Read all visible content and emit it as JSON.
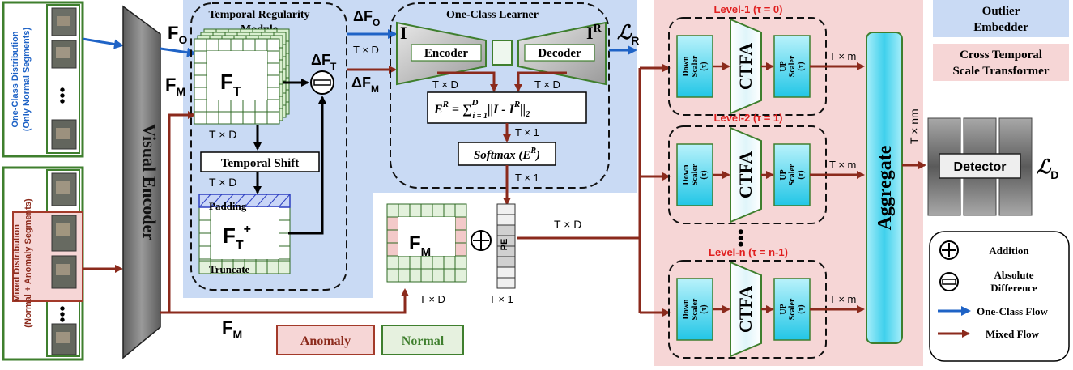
{
  "input": {
    "one_class_label_1": "One-Class Distribution",
    "one_class_label_2": "(Only Normal Segments)",
    "mixed_label_1": "Mixed Distribution",
    "mixed_label_2": "(Normal + Anomaly Segments)",
    "dots": "•••"
  },
  "encoder": {
    "title": "Visual Encoder"
  },
  "signals": {
    "f_o": "F",
    "f_o_sub": "O",
    "f_m": "F",
    "f_m_sub": "M",
    "delta_f_t": "ΔF",
    "delta_f_t_sub": "T",
    "delta_f_o": "ΔF",
    "delta_f_o_sub": "O",
    "delta_f_m": "ΔF",
    "delta_f_m_sub": "M"
  },
  "trm": {
    "title_1": "Temporal Regularity",
    "title_2": "Module",
    "ft": "F",
    "ft_sub": "T",
    "ftp": "F",
    "ftp_sub": "T",
    "ftp_sup": "+",
    "dim1": "T × D",
    "shift": "Temporal Shift",
    "dim2": "T × D",
    "padding": "Padding",
    "truncate": "Truncate"
  },
  "ocl": {
    "title": "One-Class Learner",
    "in_i": "I",
    "out_i": "I",
    "out_i_sup": "R",
    "encoder": "Encoder",
    "decoder": "Decoder",
    "dim_in": "T × D",
    "dim_a": "T × D",
    "dim_b": "T × D",
    "loss": "E",
    "loss_sup": "R",
    "loss_rhs": " = ∑",
    "loss_sup2": "D",
    "loss_sub2": "i = 1",
    "loss_norm": "||I - I",
    "loss_norm_sup": "R",
    "loss_norm_end": "||",
    "loss_norm_sub": "2",
    "dim_c": "T × 1",
    "softmax": "Softmax (E",
    "softmax_sup": "R",
    "softmax_end": ")",
    "dim_d": "T × 1",
    "lr": "ℒ",
    "lr_sub": "R"
  },
  "fm_block": {
    "label": "F",
    "label_sub": "M",
    "dim": "T × D",
    "pe": "PE",
    "pe_dim": "T × 1",
    "out_dim": "T × D"
  },
  "legend_boxes": {
    "anomaly": "Anomaly",
    "normal": "Normal"
  },
  "ctst": {
    "levels": [
      {
        "title": "Level-1 (τ = 0)",
        "dim": "T × m"
      },
      {
        "title": "Level-2 (τ = 1)",
        "dim": "T × m"
      },
      {
        "title": "Level-n (τ = n-1)",
        "dim": "T × m"
      }
    ],
    "down_1": "Down",
    "down_2": "Scaler",
    "down_3": "(τ)",
    "up_1": "UP",
    "up_2": "Scaler",
    "up_3": "(τ)",
    "ctfa": "CTFA",
    "vdots": "•••",
    "aggregate": "Aggregate",
    "agg_dim": "T × nm"
  },
  "detector": {
    "label": "Detector",
    "loss": "ℒ",
    "loss_sub": "D"
  },
  "key": {
    "outlier_1": "Outlier",
    "outlier_2": "Embedder",
    "ctst_1": "Cross Temporal",
    "ctst_2": "Scale Transformer",
    "addition": "Addition",
    "absdiff_1": "Absolute",
    "absdiff_2": "Difference",
    "one_class_flow": "One-Class Flow",
    "mixed_flow": "Mixed Flow"
  },
  "colors": {
    "blue_region": "#c9daf4",
    "pink_region": "#f6d6d6",
    "mixed_arrow": "#8b2a1c",
    "oneclass_arrow": "#1f63c6",
    "green": "#3f7f2e",
    "red_title": "#e01f1f",
    "cyan": "#55d6ee"
  }
}
